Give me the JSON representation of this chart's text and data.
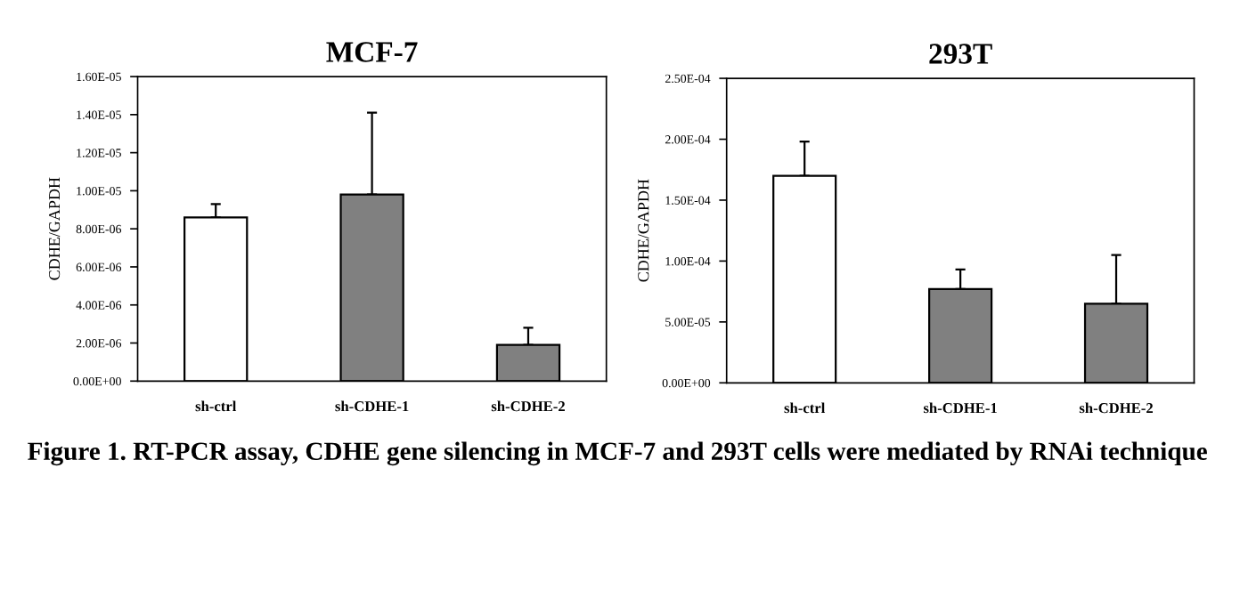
{
  "chart_data": [
    {
      "type": "bar",
      "title": "MCF-7",
      "ylabel": "CDHE/GAPDH",
      "categories": [
        "sh-ctrl",
        "sh-CDHE-1",
        "sh-CDHE-2"
      ],
      "values": [
        8.6e-06,
        9.8e-06,
        1.9e-06
      ],
      "colors": [
        "#ffffff",
        "#808080",
        "#808080"
      ],
      "errors": [
        [
          8.6e-06,
          9.3e-06
        ],
        [
          9.8e-06,
          1.41e-05
        ],
        [
          1.9e-06,
          2.8e-06
        ]
      ],
      "ylim": [
        0,
        1.6e-05
      ],
      "yticks": [
        {
          "value": 0,
          "label": "0.00E+00"
        },
        {
          "value": 2e-06,
          "label": "2.00E-06"
        },
        {
          "value": 4e-06,
          "label": "4.00E-06"
        },
        {
          "value": 6e-06,
          "label": "6.00E-06"
        },
        {
          "value": 8e-06,
          "label": "8.00E-06"
        },
        {
          "value": 1e-05,
          "label": "1.00E-05"
        },
        {
          "value": 1.2e-05,
          "label": "1.20E-05"
        },
        {
          "value": 1.4e-05,
          "label": "1.40E-05"
        },
        {
          "value": 1.6e-05,
          "label": "1.60E-05"
        }
      ],
      "annotations": [
        "Figure 1. RT-PCR assay, CDHE gene silencing in MCF-7 and 293T cells were mediated by RNAi technique"
      ]
    },
    {
      "type": "bar",
      "title": "293T",
      "ylabel": "CDHE/GAPDH",
      "categories": [
        "sh-ctrl",
        "sh-CDHE-1",
        "sh-CDHE-2"
      ],
      "values": [
        0.00017,
        7.7e-05,
        6.5e-05
      ],
      "colors": [
        "#ffffff",
        "#808080",
        "#808080"
      ],
      "errors": [
        [
          0.00017,
          0.000198
        ],
        [
          7.7e-05,
          9.3e-05
        ],
        [
          6.5e-05,
          0.000105
        ]
      ],
      "ylim": [
        0,
        0.00025
      ],
      "yticks": [
        {
          "value": 0,
          "label": "0.00E+00"
        },
        {
          "value": 5e-05,
          "label": "5.00E-05"
        },
        {
          "value": 0.0001,
          "label": "1.00E-04"
        },
        {
          "value": 0.00015,
          "label": "1.50E-04"
        },
        {
          "value": 0.0002,
          "label": "2.00E-04"
        },
        {
          "value": 0.00025,
          "label": "2.50E-04"
        }
      ]
    }
  ]
}
